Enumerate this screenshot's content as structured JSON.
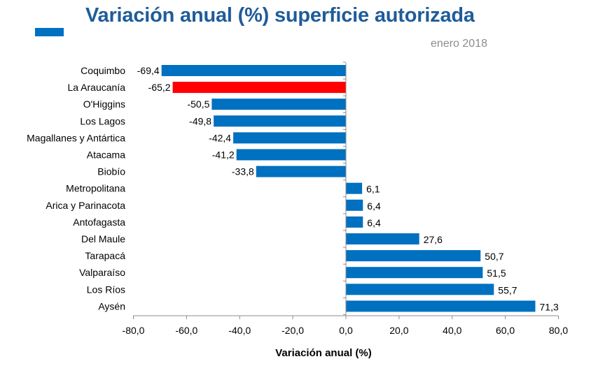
{
  "chart_data": {
    "type": "bar",
    "orientation": "horizontal",
    "title": "Variación anual (%) superficie autorizada",
    "subtitle": "enero 2018",
    "xlabel": "Variación anual (%)",
    "ylabel": "",
    "xlim": [
      -80,
      80
    ],
    "x_ticks": [
      "-80,0",
      "-60,0",
      "-40,0",
      "-20,0",
      "0,0",
      "20,0",
      "40,0",
      "60,0",
      "80,0"
    ],
    "x_tick_values": [
      -80,
      -60,
      -40,
      -20,
      0,
      20,
      40,
      60,
      80
    ],
    "grid": false,
    "categories": [
      "Coquimbo",
      "La Araucanía",
      "O'Higgins",
      "Los Lagos",
      "Magallanes y Antártica",
      "Atacama",
      "Biobío",
      "Metropolitana",
      "Arica y Parinacota",
      "Antofagasta",
      "Del Maule",
      "Tarapacá",
      "Valparaíso",
      "Los Ríos",
      "Aysén"
    ],
    "values": [
      -69.4,
      -65.2,
      -50.5,
      -49.8,
      -42.4,
      -41.2,
      -33.8,
      6.1,
      6.4,
      6.4,
      27.6,
      50.7,
      51.5,
      55.7,
      71.3
    ],
    "value_labels": [
      "-69,4",
      "-65,2",
      "-50,5",
      "-49,8",
      "-42,4",
      "-41,2",
      "-33,8",
      "6,1",
      "6,4",
      "6,4",
      "27,6",
      "50,7",
      "51,5",
      "55,7",
      "71,3"
    ],
    "highlight_category": "La Araucanía",
    "colors": {
      "bar": "#0070c0",
      "highlight": "#ff0000",
      "title": "#1f5c99",
      "subtitle": "#8c8c8c",
      "accent": "#0070c0",
      "axis": "#8c8c8c"
    }
  }
}
